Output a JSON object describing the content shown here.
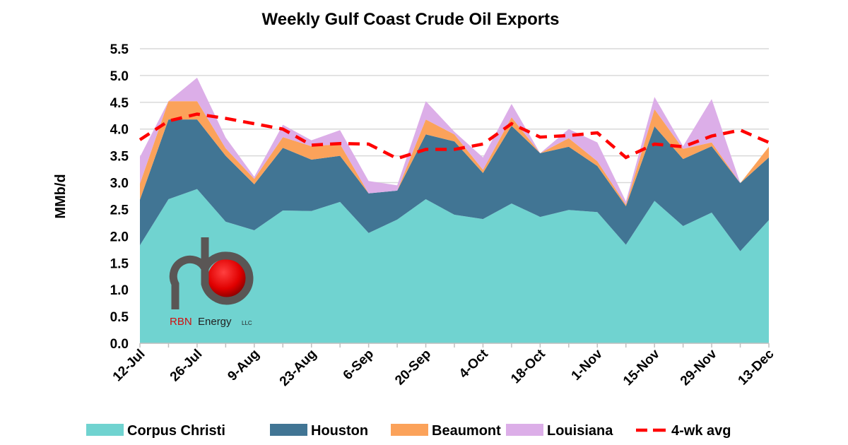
{
  "chart_data": {
    "type": "area",
    "stacked": true,
    "title": "Weekly Gulf Coast Crude Oil Exports",
    "ylabel": "MMb/d",
    "xlabel": "",
    "ylim": [
      0,
      5.5
    ],
    "yticks": [
      "0.0",
      "0.5",
      "1.0",
      "1.5",
      "2.0",
      "2.5",
      "3.0",
      "3.5",
      "4.0",
      "4.5",
      "5.0",
      "5.5"
    ],
    "grid": true,
    "legend_position": "bottom",
    "categories": [
      "12-Jul",
      "19-Jul",
      "26-Jul",
      "2-Aug",
      "9-Aug",
      "16-Aug",
      "23-Aug",
      "30-Aug",
      "6-Sep",
      "13-Sep",
      "20-Sep",
      "27-Sep",
      "4-Oct",
      "11-Oct",
      "18-Oct",
      "25-Oct",
      "1-Nov",
      "8-Nov",
      "15-Nov",
      "22-Nov",
      "29-Nov",
      "6-Dec",
      "13-Dec"
    ],
    "xtick_labels": [
      "12-Jul",
      "26-Jul",
      "9-Aug",
      "23-Aug",
      "6-Sep",
      "20-Sep",
      "4-Oct",
      "18-Oct",
      "1-Nov",
      "15-Nov",
      "29-Nov",
      "13-Dec"
    ],
    "series": [
      {
        "name": "Corpus Christi",
        "color": "#70d3d0",
        "values": [
          1.83,
          2.69,
          2.88,
          2.27,
          2.11,
          2.48,
          2.47,
          2.64,
          2.06,
          2.31,
          2.69,
          2.4,
          2.32,
          2.61,
          2.36,
          2.49,
          2.45,
          1.84,
          2.66,
          2.19,
          2.44,
          1.72,
          2.3
        ]
      },
      {
        "name": "Houston",
        "color": "#417594",
        "values": [
          0.85,
          1.49,
          1.3,
          1.23,
          0.86,
          1.17,
          0.96,
          0.86,
          0.74,
          0.54,
          1.21,
          1.37,
          0.86,
          1.45,
          1.19,
          1.18,
          0.86,
          0.72,
          1.39,
          1.25,
          1.24,
          1.27,
          1.17
        ]
      },
      {
        "name": "Beaumont",
        "color": "#fba25a",
        "values": [
          0.3,
          0.34,
          0.34,
          0.14,
          0.1,
          0.2,
          0.25,
          0.22,
          0.0,
          0.0,
          0.28,
          0.13,
          0.06,
          0.16,
          0.0,
          0.16,
          0.09,
          0.03,
          0.32,
          0.19,
          0.07,
          0.0,
          0.2
        ]
      },
      {
        "name": "Louisiana",
        "color": "#dcaee8",
        "values": [
          0.5,
          0.0,
          0.44,
          0.2,
          0.04,
          0.23,
          0.11,
          0.26,
          0.23,
          0.1,
          0.34,
          0.05,
          0.23,
          0.25,
          0.0,
          0.17,
          0.35,
          0.06,
          0.23,
          0.05,
          0.81,
          0.0,
          0.0
        ]
      }
    ],
    "line_series": {
      "name": "4-wk avg",
      "color": "#ff0000",
      "style": "dashed",
      "values": [
        3.8,
        4.15,
        4.28,
        4.2,
        4.1,
        4.0,
        3.7,
        3.73,
        3.72,
        3.45,
        3.62,
        3.62,
        3.72,
        4.1,
        3.85,
        3.88,
        3.93,
        3.47,
        3.72,
        3.67,
        3.87,
        3.98,
        3.75
      ]
    }
  },
  "logo": {
    "text_red": "RBN",
    "text_dark": "Energy",
    "suffix": "LLC"
  }
}
